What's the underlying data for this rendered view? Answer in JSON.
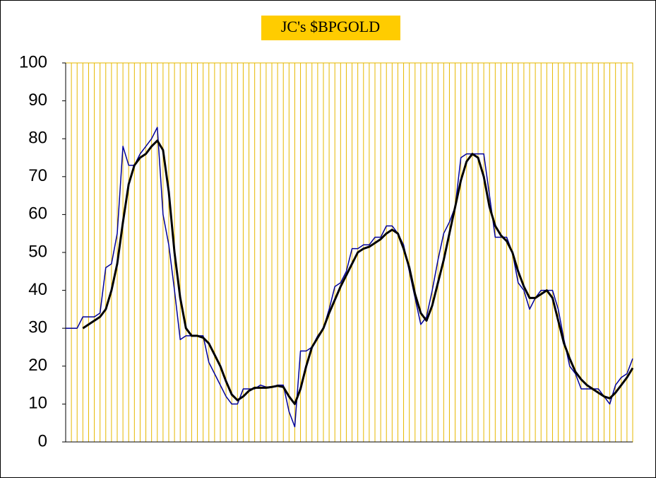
{
  "chart_data": {
    "type": "line",
    "title": "JC's $BPGOLD",
    "title_background": "#ffcc00",
    "categories": [
      null,
      null,
      null,
      null,
      null,
      null,
      null,
      null,
      null,
      null,
      null,
      null,
      null,
      null,
      null,
      null,
      null,
      null,
      null,
      null,
      null,
      null,
      null,
      null,
      null,
      null,
      null,
      null,
      null,
      null,
      null,
      null,
      null,
      null,
      null,
      null,
      null,
      null,
      null,
      null,
      null,
      null,
      null,
      null,
      null,
      null,
      null,
      null,
      null,
      null,
      null,
      null,
      null,
      null,
      null,
      null,
      null,
      null,
      null,
      null,
      null,
      null,
      null,
      null,
      null,
      null,
      null,
      null,
      null,
      null,
      null,
      null,
      null,
      null,
      null,
      null,
      null,
      null,
      null,
      null,
      null,
      null,
      null,
      null,
      null,
      null,
      null,
      null,
      null,
      null,
      null,
      null,
      null,
      null,
      null,
      null,
      null,
      null,
      null,
      null
    ],
    "series": [
      {
        "color": "#000099",
        "width": 1.5,
        "values": [
          30,
          30,
          30,
          33,
          33,
          33,
          34,
          46,
          47,
          55,
          78,
          73,
          73,
          76,
          78,
          80,
          83,
          60,
          52,
          40,
          27,
          28,
          28,
          28,
          28,
          21,
          18,
          15,
          12,
          10,
          10,
          14,
          14,
          14,
          15,
          14.5,
          14.5,
          15,
          15,
          8,
          4,
          24,
          24,
          25,
          28,
          30,
          35,
          41,
          42,
          45,
          51,
          51,
          52,
          52,
          54,
          54,
          57,
          57,
          55,
          52,
          45,
          38,
          31,
          33,
          40,
          48,
          55,
          58,
          62,
          75,
          76,
          76,
          76,
          76,
          65,
          54,
          54,
          54,
          50,
          42,
          40,
          35,
          38,
          40,
          40,
          40,
          35,
          27,
          20,
          18,
          14,
          14,
          14,
          14,
          12,
          10,
          15,
          17,
          18,
          22
        ]
      },
      {
        "color": "#000000",
        "width": 3,
        "values": [
          null,
          null,
          null,
          30,
          31,
          32,
          33,
          35,
          40,
          47,
          58,
          68,
          73,
          75,
          76,
          78,
          79.5,
          77,
          66,
          50,
          38,
          30,
          28,
          28,
          27.5,
          26,
          23,
          20,
          16,
          12.5,
          11,
          12,
          13.5,
          14.3,
          14.3,
          14.3,
          14.5,
          14.8,
          14.5,
          12,
          10,
          14,
          20,
          25,
          27.5,
          30,
          34,
          37.5,
          41,
          44,
          47,
          50,
          51,
          51.5,
          52.5,
          53.5,
          55,
          56,
          55,
          51,
          46,
          39,
          34,
          32,
          36,
          42,
          48,
          55,
          62,
          69,
          74,
          76,
          75,
          70,
          62,
          57,
          54.5,
          53,
          50,
          45,
          41,
          38,
          38,
          39,
          40,
          38,
          32,
          26,
          22,
          18.5,
          16.5,
          15,
          14,
          13,
          12,
          11.5,
          13,
          15,
          17,
          19.5
        ]
      }
    ],
    "ylim": [
      0,
      100
    ],
    "yticks": [
      0,
      10,
      20,
      30,
      40,
      50,
      60,
      70,
      80,
      90,
      100
    ],
    "grid_color": "#e6b800"
  }
}
